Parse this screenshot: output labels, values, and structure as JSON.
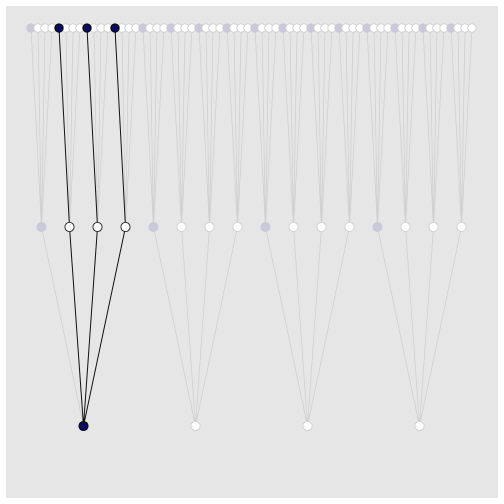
{
  "colors": {
    "panel_background": "#e6e6e6",
    "page_background": "#ffffff",
    "edge_inactive": "#d0d0d0",
    "edge_active": "#111111",
    "node_gray_fill": "#c9c9d9",
    "node_open_fill": "#ffffff",
    "node_open_stroke_inactive": "#cfcfcf",
    "node_open_stroke_active": "#222222",
    "node_active_fill": "#0c0c5c",
    "node_active_stroke": "#000000"
  },
  "tree": {
    "groups": 4,
    "mid_per_group": 4,
    "leaves_per_mid": 4,
    "active_group": 0,
    "active_mid": [
      1,
      2,
      3
    ],
    "active_leaf_of_each_active_mid": 0,
    "filled_gray_mid_position": 0,
    "filled_gray_leaf_position": 0
  }
}
